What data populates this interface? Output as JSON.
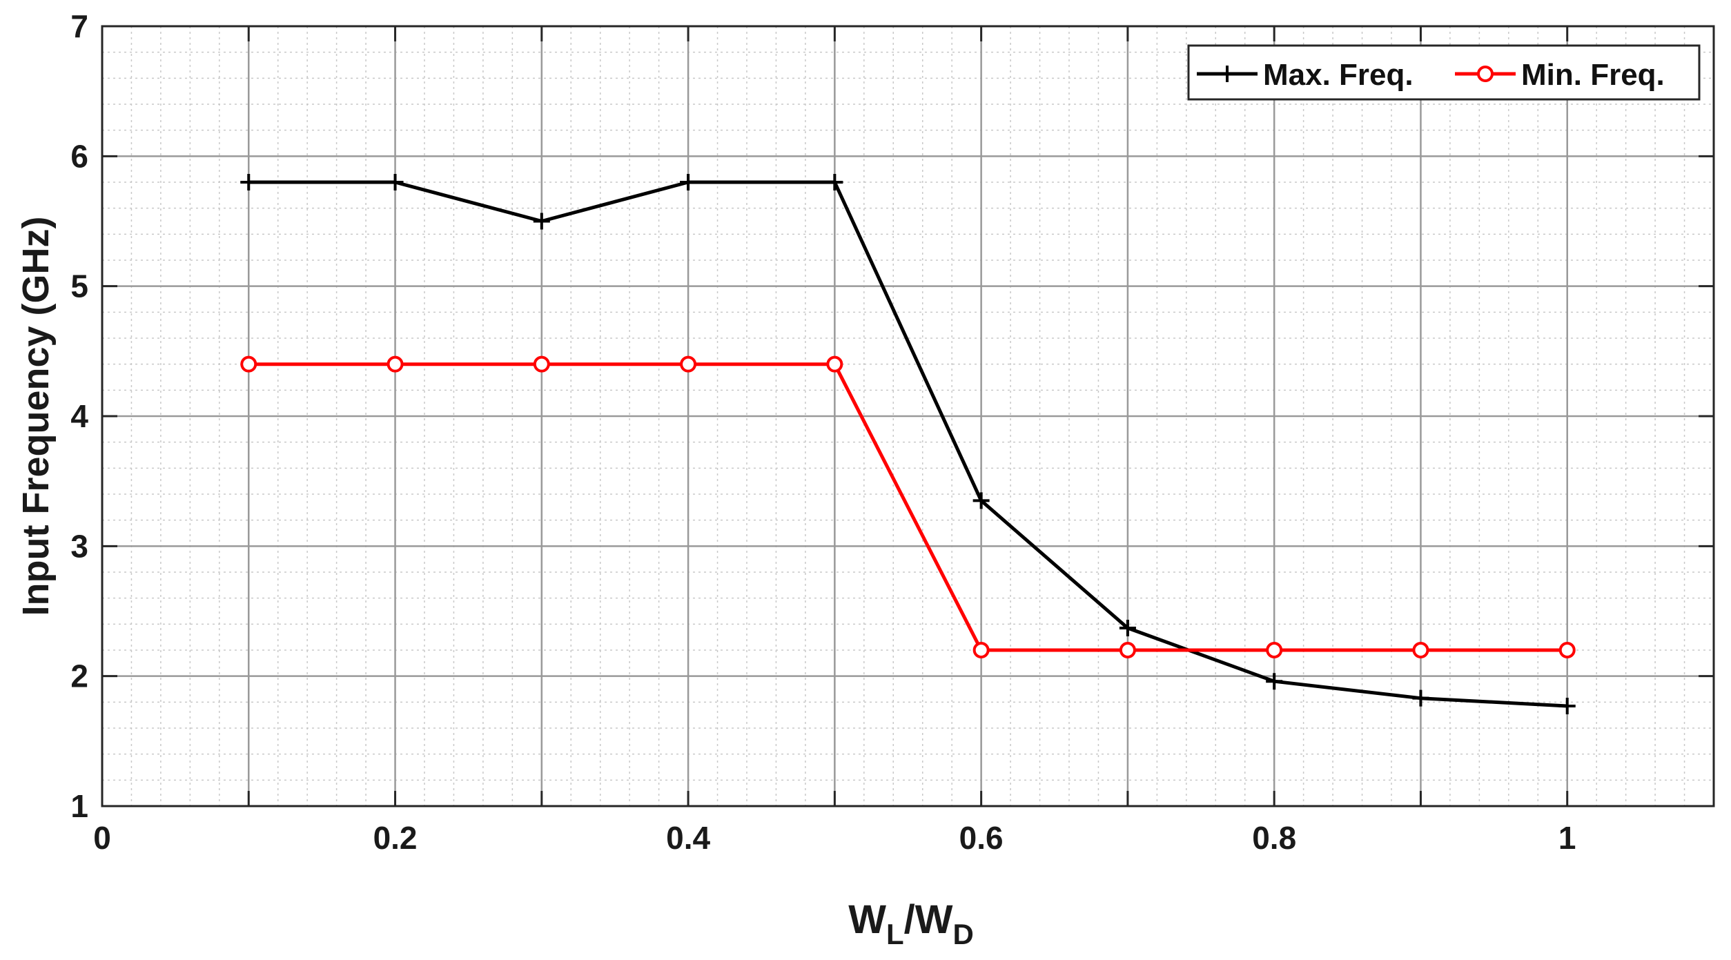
{
  "chart_data": {
    "type": "line",
    "xlabel": {
      "main": "W",
      "sub1": "L",
      "sep": "/W",
      "sub2": "D"
    },
    "ylabel": "Input Frequency (GHz)",
    "xlim": [
      0,
      1.1
    ],
    "ylim": [
      1,
      7
    ],
    "xticks": [
      0,
      0.2,
      0.4,
      0.6,
      0.8,
      1
    ],
    "xtick_labels": [
      "0",
      "0.2",
      "0.4",
      "0.6",
      "0.8",
      "1"
    ],
    "yticks": [
      1,
      2,
      3,
      4,
      5,
      6,
      7
    ],
    "ytick_labels": [
      "1",
      "2",
      "3",
      "4",
      "5",
      "6",
      "7"
    ],
    "grid": true,
    "legend_position": "top-right",
    "x": [
      0.1,
      0.2,
      0.3,
      0.4,
      0.5,
      0.6,
      0.7,
      0.8,
      0.9,
      1.0
    ],
    "series": [
      {
        "name": "Max. Freq.",
        "color": "#000000",
        "marker": "plus",
        "values": [
          5.8,
          5.8,
          5.5,
          5.8,
          5.8,
          3.35,
          2.37,
          1.96,
          1.83,
          1.77
        ]
      },
      {
        "name": "Min. Freq.",
        "color": "#ff0000",
        "marker": "circle",
        "values": [
          4.4,
          4.4,
          4.4,
          4.4,
          4.4,
          2.2,
          2.2,
          2.2,
          2.2,
          2.2
        ]
      }
    ]
  }
}
